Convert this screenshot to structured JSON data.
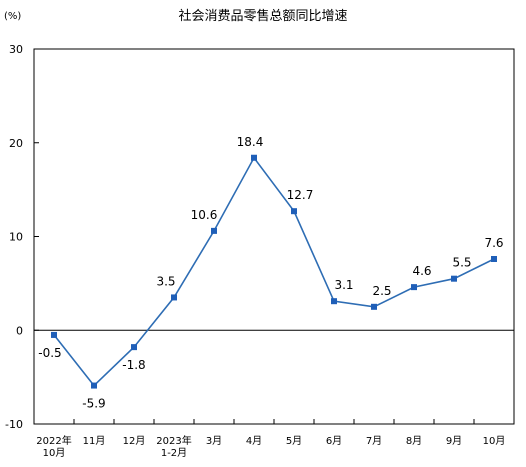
{
  "chart_data": {
    "type": "line",
    "title": "社会消费品零售总额同比增速",
    "ylabel": "(%)",
    "ylim": [
      -10,
      30
    ],
    "yticks": [
      "-10",
      "0",
      "10",
      "20",
      "30"
    ],
    "grid": false,
    "categories": [
      [
        "2022年",
        "10月"
      ],
      [
        "11月"
      ],
      [
        "12月"
      ],
      [
        "2023年",
        "1-2月"
      ],
      [
        "3月"
      ],
      [
        "4月"
      ],
      [
        "5月"
      ],
      [
        "6月"
      ],
      [
        "7月"
      ],
      [
        "8月"
      ],
      [
        "9月"
      ],
      [
        "10月"
      ]
    ],
    "values": [
      -0.5,
      -5.9,
      -1.8,
      3.5,
      10.6,
      18.4,
      12.7,
      3.1,
      2.5,
      4.6,
      5.5,
      7.6
    ],
    "value_labels": [
      "-0.5",
      "-5.9",
      "-1.8",
      "3.5",
      "10.6",
      "18.4",
      "12.7",
      "3.1",
      "2.5",
      "4.6",
      "5.5",
      "7.6"
    ],
    "line_color": "#2e6db4",
    "marker_color": "#1f5fb8"
  }
}
